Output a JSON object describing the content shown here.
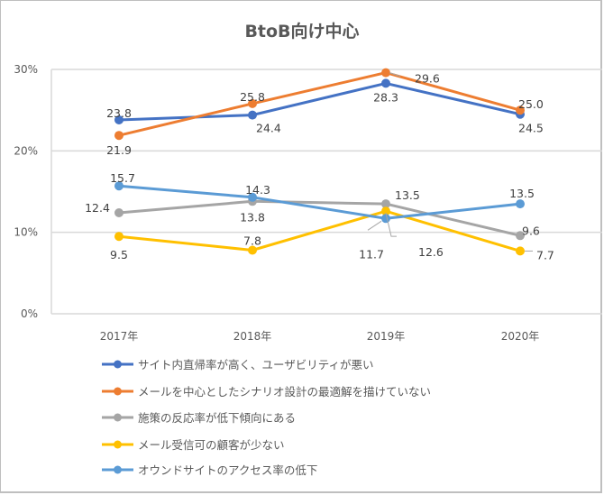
{
  "chart_data": {
    "type": "line",
    "title": "BtoB向け中心",
    "xlabel": "",
    "ylabel": "",
    "categories": [
      "2017年",
      "2018年",
      "2019年",
      "2020年"
    ],
    "ylim": [
      0,
      30
    ],
    "yticks": [
      {
        "value": 0,
        "label": "0%"
      },
      {
        "value": 10,
        "label": "10%"
      },
      {
        "value": 20,
        "label": "20%"
      },
      {
        "value": 30,
        "label": "30%"
      }
    ],
    "grid": true,
    "legend_position": "bottom",
    "series": [
      {
        "name": "サイト内直帰率が高く、ユーザビリティが悪い",
        "color": "#4472C4",
        "values": [
          23.8,
          24.4,
          28.3,
          24.5
        ],
        "labels": [
          "23.8",
          "24.4",
          "28.3",
          "24.5"
        ]
      },
      {
        "name": "メールを中心としたシナリオ設計の最適解を描けていない",
        "color": "#ED7D31",
        "values": [
          21.9,
          25.8,
          29.6,
          25.0
        ],
        "labels": [
          "21.9",
          "25.8",
          "29.6",
          "25.0"
        ]
      },
      {
        "name": "施策の反応率が低下傾向にある",
        "color": "#A5A5A5",
        "values": [
          12.4,
          13.8,
          13.5,
          9.6
        ],
        "labels": [
          "12.4",
          "13.8",
          "13.5",
          "9.6"
        ]
      },
      {
        "name": "メール受信可の顧客が少ない",
        "color": "#FFC000",
        "values": [
          9.5,
          7.8,
          12.6,
          7.7
        ],
        "labels": [
          "9.5",
          "7.8",
          "12.6",
          "7.7"
        ]
      },
      {
        "name": "オウンドサイトのアクセス率の低下",
        "color": "#5B9BD5",
        "values": [
          15.7,
          14.3,
          11.7,
          13.5
        ],
        "labels": [
          "15.7",
          "14.3",
          "11.7",
          "13.5"
        ]
      }
    ]
  },
  "legend": {
    "items": [
      "サイト内直帰率が高く、ユーザビリティが悪い",
      "メールを中心としたシナリオ設計の最適解を描けていない",
      "施策の反応率が低下傾向にある",
      "メール受信可の顧客が少ない",
      "オウンドサイトのアクセス率の低下"
    ]
  }
}
